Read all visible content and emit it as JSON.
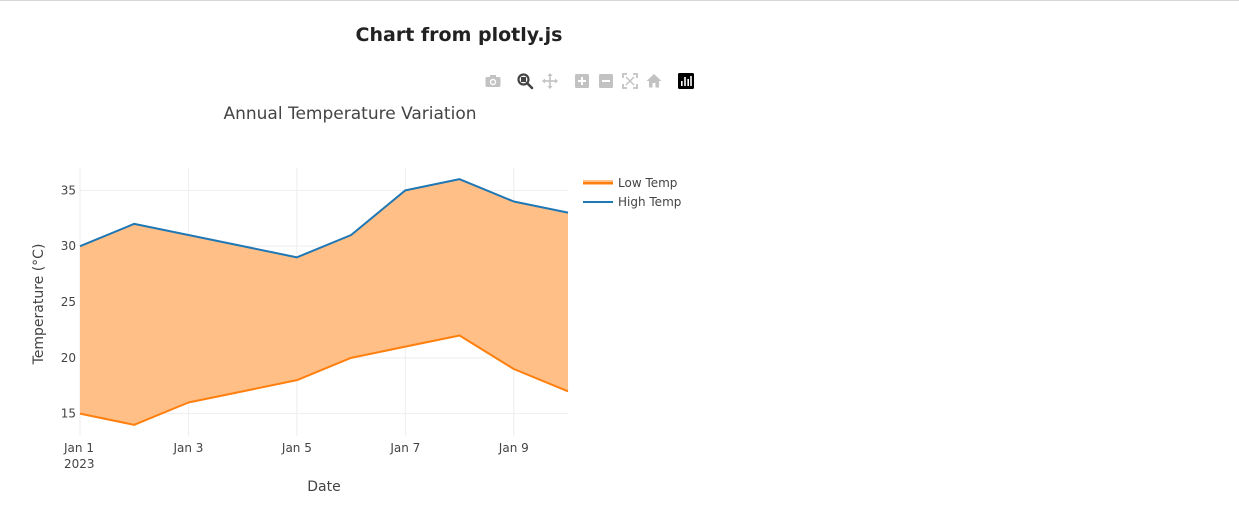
{
  "page": {
    "heading": "Chart from plotly.js"
  },
  "modebar": {
    "buttons": [
      {
        "icon": "camera-icon",
        "active": false
      },
      {
        "icon": "zoom-icon",
        "active": true
      },
      {
        "icon": "pan-icon",
        "active": false
      },
      {
        "icon": "zoom-in-icon",
        "active": false
      },
      {
        "icon": "zoom-out-icon",
        "active": false
      },
      {
        "icon": "autoscale-icon",
        "active": false
      },
      {
        "icon": "reset-axes-icon",
        "active": false
      },
      {
        "icon": "plotly-logo-icon",
        "active": false
      }
    ]
  },
  "chart_data": {
    "type": "area",
    "title": "Annual Temperature Variation",
    "xlabel": "Date",
    "ylabel": "Temperature (°C)",
    "x": [
      "2023-01-01",
      "2023-01-02",
      "2023-01-03",
      "2023-01-04",
      "2023-01-05",
      "2023-01-06",
      "2023-01-07",
      "2023-01-08",
      "2023-01-09",
      "2023-01-10"
    ],
    "xlim": [
      "2023-01-01",
      "2023-01-10"
    ],
    "ylim": [
      13,
      37
    ],
    "x_tick_labels": [
      "Jan 1",
      "Jan 3",
      "Jan 5",
      "Jan 7",
      "Jan 9"
    ],
    "x_tick_sublabel": "2023",
    "y_ticks": [
      15,
      20,
      25,
      30,
      35
    ],
    "grid": true,
    "fill": "between series",
    "legend_position": "right",
    "series": [
      {
        "name": "Low Temp",
        "color": "#ff7f0e",
        "fill_color": "#ffbf86",
        "values": [
          15,
          14,
          16,
          17,
          18,
          20,
          21,
          22,
          19,
          17
        ]
      },
      {
        "name": "High Temp",
        "color": "#1f77b4",
        "values": [
          30,
          32,
          31,
          30,
          29,
          31,
          35,
          36,
          34,
          33
        ]
      }
    ]
  }
}
